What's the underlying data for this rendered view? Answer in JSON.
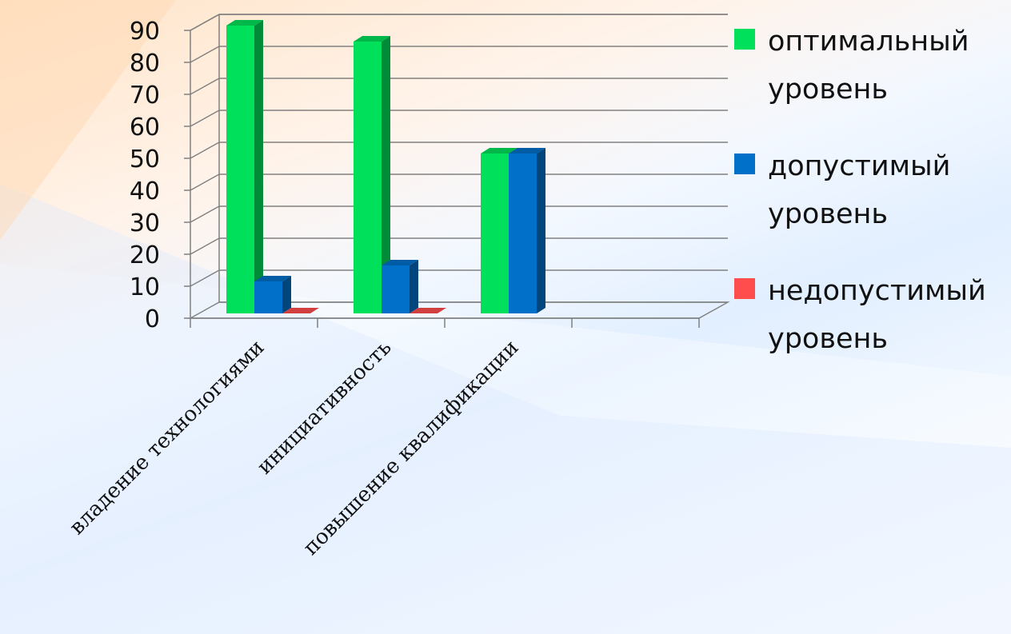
{
  "chart_data": {
    "type": "bar",
    "style": "3d-clustered-column",
    "categories": [
      "владение технологиями",
      "инициативность",
      "повышение квалификации",
      ""
    ],
    "series": [
      {
        "name": "оптимальный уровень",
        "color": "#00e05a",
        "values": [
          90,
          85,
          50,
          null
        ]
      },
      {
        "name": "допустимый уровень",
        "color": "#0070c8",
        "values": [
          10,
          15,
          50,
          null
        ]
      },
      {
        "name": "недопустимый уровень",
        "color": "#ff4d4d",
        "values": [
          0,
          0,
          null,
          null
        ]
      }
    ],
    "y_ticks": [
      "0",
      "10",
      "20",
      "30",
      "40",
      "50",
      "60",
      "70",
      "80",
      "90"
    ],
    "ylim": [
      0,
      90
    ],
    "grid": true,
    "legend_position": "right"
  },
  "colors": {
    "gridline": "#808080",
    "axis": "#808080"
  }
}
